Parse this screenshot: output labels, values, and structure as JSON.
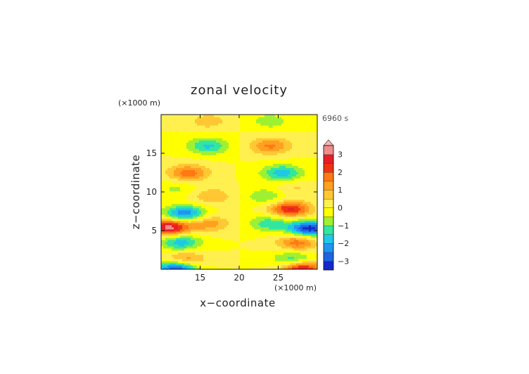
{
  "chart_data": {
    "type": "heatmap",
    "title": "zonal velocity",
    "time_label": "6960 s",
    "xlabel": "x−coordinate",
    "ylabel": "z−coordinate",
    "x_unit": "(×1000 m)",
    "y_unit": "(×1000 m)",
    "xlim": [
      10,
      30
    ],
    "ylim": [
      0,
      20
    ],
    "x_ticks": [
      15,
      20,
      25
    ],
    "y_ticks": [
      5,
      10,
      15
    ],
    "x_tick_labels": [
      "15",
      "20",
      "25"
    ],
    "y_tick_labels": [
      "5",
      "10",
      "15"
    ],
    "grid": false,
    "legend": "colorbar right",
    "colorbar": {
      "levels": [
        -3.5,
        -3.0,
        -2.5,
        -2.0,
        -1.5,
        -1.0,
        -0.5,
        0.0,
        0.5,
        1.0,
        1.5,
        2.0,
        2.5,
        3.0,
        3.5
      ],
      "tick_values": [
        -3,
        -2,
        -1,
        0,
        1,
        2,
        3
      ],
      "tick_labels": [
        "−3",
        "−2",
        "−1",
        "0",
        "1",
        "2",
        "3"
      ],
      "colors": [
        "#0a0a78",
        "#1428c8",
        "#1e64e6",
        "#1e96f0",
        "#1ec8e6",
        "#32e6a0",
        "#a0f032",
        "#ffff00",
        "#fff050",
        "#ffc832",
        "#ffa020",
        "#ff7814",
        "#f03214",
        "#e61e28",
        "#f08c8c",
        "#fab4b4"
      ]
    },
    "field_features": [
      {
        "x": 16.0,
        "z": 16.0,
        "value": -1.6
      },
      {
        "x": 24.0,
        "z": 16.0,
        "value": 1.6
      },
      {
        "x": 13.5,
        "z": 12.5,
        "value": 1.8
      },
      {
        "x": 25.5,
        "z": 12.5,
        "value": -1.8
      },
      {
        "x": 12.0,
        "z": 10.5,
        "value": -0.6
      },
      {
        "x": 27.0,
        "z": 10.5,
        "value": 0.6
      },
      {
        "x": 16.5,
        "z": 9.5,
        "value": 1.0
      },
      {
        "x": 23.5,
        "z": 9.5,
        "value": -1.0
      },
      {
        "x": 13.0,
        "z": 7.2,
        "value": -2.5
      },
      {
        "x": 26.5,
        "z": 7.8,
        "value": 2.6
      },
      {
        "x": 11.0,
        "z": 5.5,
        "value": 3.3
      },
      {
        "x": 29.0,
        "z": 5.3,
        "value": -3.3
      },
      {
        "x": 16.0,
        "z": 6.0,
        "value": 1.4
      },
      {
        "x": 24.0,
        "z": 6.0,
        "value": -1.4
      },
      {
        "x": 12.5,
        "z": 3.5,
        "value": -1.8
      },
      {
        "x": 27.5,
        "z": 3.5,
        "value": 1.8
      },
      {
        "x": 13.0,
        "z": 1.3,
        "value": 1.6
      },
      {
        "x": 27.0,
        "z": 1.3,
        "value": -1.6
      },
      {
        "x": 12.0,
        "z": 0.15,
        "value": -3.2
      },
      {
        "x": 28.0,
        "z": 0.15,
        "value": 3.0
      },
      {
        "x": 16.0,
        "z": 19.2,
        "value": 0.8
      },
      {
        "x": 24.0,
        "z": 19.2,
        "value": -0.8
      }
    ]
  }
}
